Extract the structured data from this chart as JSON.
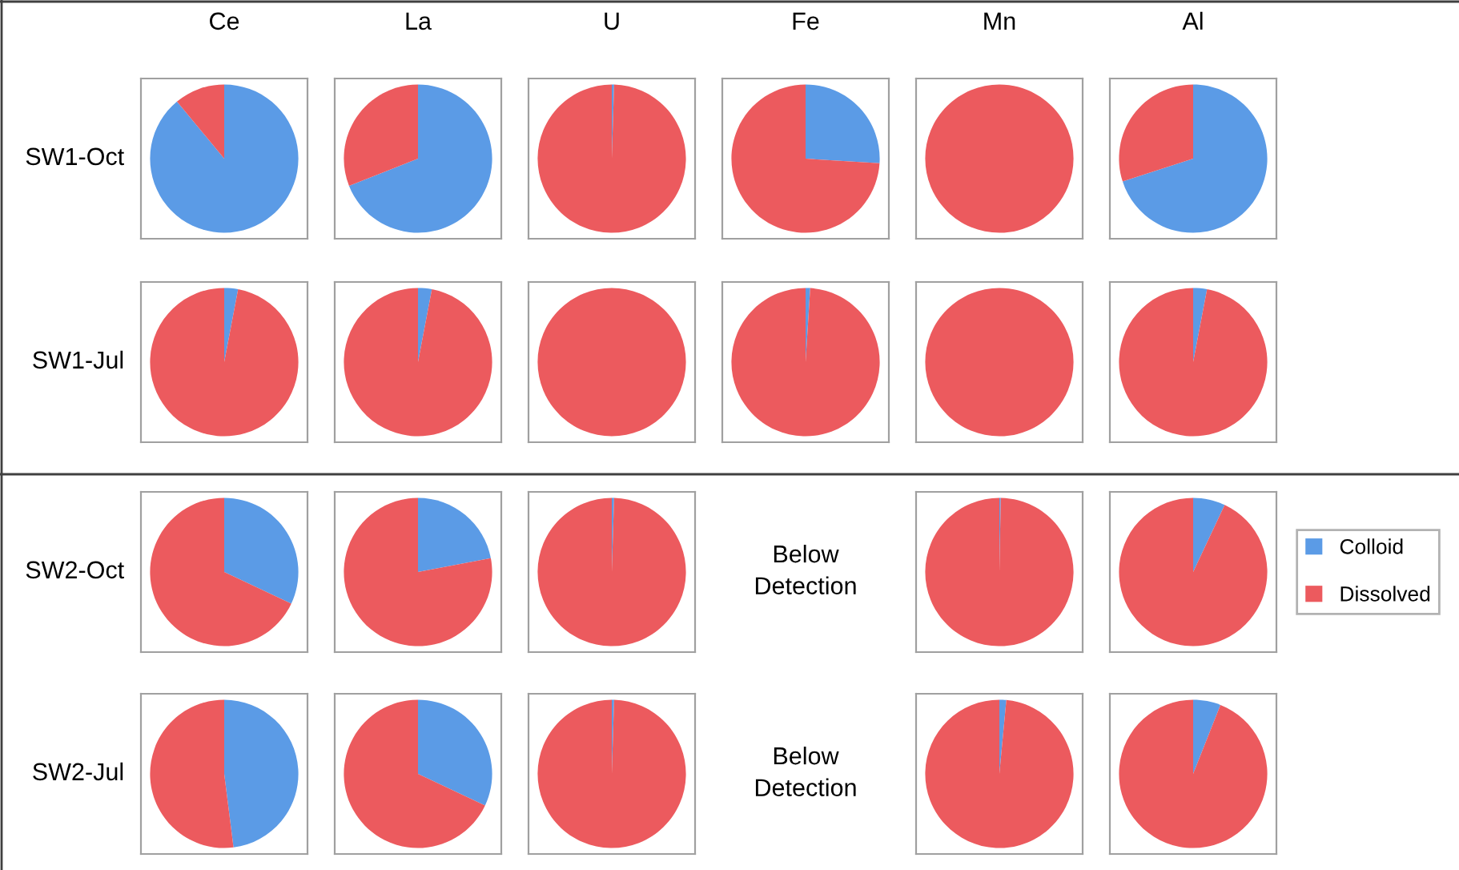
{
  "chart_data": [
    {
      "type": "pie",
      "title": "Ce",
      "ylabel": "SW1-Oct",
      "categories": [
        null,
        null
      ],
      "values": [
        89,
        11
      ],
      "colors": [
        "#5b9be6",
        "#ec5a5e"
      ]
    },
    {
      "type": "pie",
      "title": "La",
      "categories": [
        null,
        null
      ],
      "values": [
        69,
        31
      ],
      "colors": [
        "#5b9be6",
        "#ec5a5e"
      ]
    },
    {
      "type": "pie",
      "title": "U",
      "categories": [
        null,
        null
      ],
      "values": [
        0.5,
        99.5
      ],
      "colors": [
        "#5b9be6",
        "#ec5a5e"
      ]
    },
    {
      "type": "pie",
      "title": "Fe",
      "categories": [
        null,
        null
      ],
      "values": [
        26,
        74
      ],
      "colors": [
        "#5b9be6",
        "#ec5a5e"
      ]
    },
    {
      "type": "pie",
      "title": "Mn",
      "categories": [
        null,
        null
      ],
      "values": [
        0,
        100
      ],
      "colors": [
        "#5b9be6",
        "#ec5a5e"
      ]
    },
    {
      "type": "pie",
      "title": "Al",
      "categories": [
        null,
        null
      ],
      "values": [
        70,
        30
      ],
      "colors": [
        "#5b9be6",
        "#ec5a5e"
      ]
    },
    {
      "type": "pie",
      "ylabel": "SW1-Jul",
      "categories": [
        null,
        null
      ],
      "values": [
        3,
        97
      ],
      "colors": [
        "#5b9be6",
        "#ec5a5e"
      ]
    },
    {
      "type": "pie",
      "categories": [
        null,
        null
      ],
      "values": [
        3,
        97
      ],
      "colors": [
        "#5b9be6",
        "#ec5a5e"
      ]
    },
    {
      "type": "pie",
      "categories": [
        null,
        null
      ],
      "values": [
        0,
        100
      ],
      "colors": [
        "#5b9be6",
        "#ec5a5e"
      ]
    },
    {
      "type": "pie",
      "categories": [
        null,
        null
      ],
      "values": [
        1,
        99
      ],
      "colors": [
        "#5b9be6",
        "#ec5a5e"
      ]
    },
    {
      "type": "pie",
      "categories": [
        null,
        null
      ],
      "values": [
        0,
        100
      ],
      "colors": [
        "#5b9be6",
        "#ec5a5e"
      ]
    },
    {
      "type": "pie",
      "categories": [
        null,
        null
      ],
      "values": [
        3,
        97
      ],
      "colors": [
        "#5b9be6",
        "#ec5a5e"
      ]
    },
    {
      "type": "pie",
      "ylabel": "SW2-Oct",
      "categories": [
        null,
        null
      ],
      "values": [
        32,
        68
      ],
      "colors": [
        "#5b9be6",
        "#ec5a5e"
      ]
    },
    {
      "type": "pie",
      "categories": [
        null,
        null
      ],
      "values": [
        22,
        78
      ],
      "colors": [
        "#5b9be6",
        "#ec5a5e"
      ]
    },
    {
      "type": "pie",
      "categories": [
        null,
        null
      ],
      "values": [
        0.5,
        99.5
      ],
      "colors": [
        "#5b9be6",
        "#ec5a5e"
      ]
    },
    {
      "type": "other",
      "annotations": [
        "Below\nDetection"
      ]
    },
    {
      "type": "pie",
      "categories": [
        null,
        null
      ],
      "values": [
        0.3,
        99.7
      ],
      "colors": [
        "#5b9be6",
        "#ec5a5e"
      ]
    },
    {
      "type": "pie",
      "legend": "right",
      "categories": [
        "Colloid",
        "Dissolved"
      ],
      "values": [
        7,
        93
      ],
      "colors": [
        "#5b9be6",
        "#ec5a5e"
      ]
    },
    {
      "type": "pie",
      "ylabel": "SW2-Jul",
      "categories": [
        null,
        null
      ],
      "values": [
        48,
        52
      ],
      "colors": [
        "#5b9be6",
        "#ec5a5e"
      ]
    },
    {
      "type": "pie",
      "categories": [
        null,
        null
      ],
      "values": [
        32,
        68
      ],
      "colors": [
        "#5b9be6",
        "#ec5a5e"
      ]
    },
    {
      "type": "pie",
      "categories": [
        null,
        null
      ],
      "values": [
        0.5,
        99.5
      ],
      "colors": [
        "#5b9be6",
        "#ec5a5e"
      ]
    },
    {
      "type": "other",
      "annotations": [
        "Below\nDetection"
      ]
    },
    {
      "type": "pie",
      "categories": [
        null,
        null
      ],
      "values": [
        1.5,
        98.5
      ],
      "colors": [
        "#5b9be6",
        "#ec5a5e"
      ]
    },
    {
      "type": "pie",
      "categories": [
        null,
        null
      ],
      "values": [
        6,
        94
      ],
      "colors": [
        "#5b9be6",
        "#ec5a5e"
      ]
    }
  ]
}
